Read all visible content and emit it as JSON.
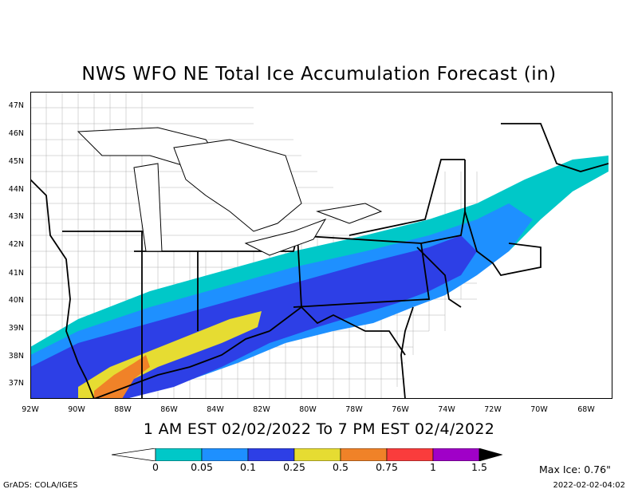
{
  "title": "NWS WFO NE Total Ice Accumulation Forecast (in)",
  "subtitle": "1 AM EST 02/02/2022 To 7 PM EST 02/4/2022",
  "lat_labels": [
    "47N",
    "46N",
    "45N",
    "44N",
    "43N",
    "42N",
    "41N",
    "40N",
    "39N",
    "38N",
    "37N"
  ],
  "lon_labels": [
    "92W",
    "90W",
    "88W",
    "86W",
    "84W",
    "82W",
    "80W",
    "78W",
    "76W",
    "74W",
    "72W",
    "70W",
    "68W"
  ],
  "legend": {
    "labels": [
      "0",
      "0.05",
      "0.1",
      "0.25",
      "0.5",
      "0.75",
      "1",
      "1.5"
    ],
    "colors": [
      "#00c8c8",
      "#1e90ff",
      "#2d3fe6",
      "#e6dc32",
      "#f08228",
      "#fa3c3c",
      "#a000c8",
      "#000000"
    ]
  },
  "max_ice": "Max Ice: 0.76\"",
  "footer": {
    "credit": "GrADS: COLA/IGES",
    "timestamp": "2022-02-02-04:02"
  },
  "colors": {
    "border": "#000000",
    "county": "#999999"
  }
}
